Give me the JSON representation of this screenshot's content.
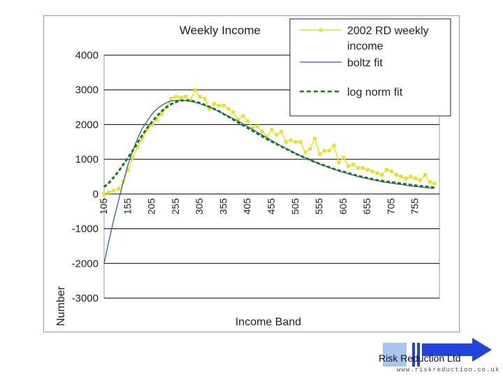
{
  "chart_data": {
    "type": "line",
    "title": "Weekly Income",
    "xlabel": "Income Band",
    "ylabel": "Number",
    "ylim": [
      -3000,
      4000
    ],
    "yticks": [
      "4000",
      "3000",
      "2000",
      "1000",
      "0",
      "-1000",
      "-2000",
      "-3000"
    ],
    "xticks": [
      "105",
      "155",
      "205",
      "255",
      "305",
      "355",
      "405",
      "455",
      "505",
      "555",
      "605",
      "655",
      "705",
      "755"
    ],
    "grid": "horizontal",
    "legend_position": "top-right",
    "legend": [
      "2002 RD weekly income",
      "boltz fit",
      "log norm fit"
    ],
    "series": [
      {
        "name": "2002 RD weekly income",
        "style": "points",
        "color": "#e8e02a",
        "x": [
          105,
          115,
          125,
          135,
          145,
          155,
          165,
          175,
          185,
          195,
          205,
          215,
          225,
          235,
          245,
          255,
          265,
          275,
          285,
          295,
          305,
          315,
          325,
          335,
          345,
          355,
          365,
          375,
          385,
          395,
          405,
          415,
          425,
          435,
          445,
          455,
          465,
          475,
          485,
          495,
          505,
          515,
          525,
          535,
          545,
          555,
          565,
          575,
          585,
          595,
          605,
          615,
          625,
          635,
          645,
          655,
          665,
          675,
          685,
          695,
          705,
          715,
          725,
          735,
          745,
          755,
          765,
          775,
          785,
          795
        ],
        "y": [
          0,
          50,
          100,
          150,
          350,
          700,
          1050,
          1350,
          1600,
          1850,
          2000,
          2150,
          2300,
          2500,
          2750,
          2800,
          2780,
          2800,
          2700,
          3000,
          2800,
          2750,
          2450,
          2600,
          2550,
          2550,
          2450,
          2350,
          2150,
          2250,
          2100,
          1900,
          1950,
          1800,
          1650,
          1850,
          1700,
          1800,
          1500,
          1550,
          1500,
          1500,
          1200,
          1300,
          1600,
          1150,
          1250,
          1250,
          1400,
          900,
          1050,
          800,
          850,
          750,
          750,
          700,
          650,
          600,
          550,
          700,
          650,
          550,
          500,
          450,
          500,
          450,
          400,
          550,
          350,
          300
        ]
      },
      {
        "name": "boltz fit",
        "style": "line",
        "color": "#2b5fb5",
        "x": [
          105,
          115,
          125,
          135,
          145,
          155,
          165,
          175,
          185,
          195,
          205,
          215,
          225,
          235,
          245,
          255,
          265,
          275,
          285,
          295,
          305,
          315,
          325,
          335,
          345,
          355,
          365,
          375,
          385,
          395,
          405,
          415,
          425,
          435,
          445,
          455,
          465,
          475,
          485,
          495,
          505,
          515,
          525,
          535,
          545,
          555,
          565,
          575,
          585,
          595,
          605,
          615,
          625,
          635,
          645,
          655,
          665,
          675,
          685,
          695,
          705,
          715,
          725,
          735,
          745,
          755,
          765,
          775,
          785,
          795
        ],
        "y": [
          -2000,
          -1350,
          -750,
          -200,
          350,
          850,
          1250,
          1600,
          1900,
          2100,
          2300,
          2450,
          2550,
          2630,
          2680,
          2700,
          2700,
          2690,
          2670,
          2640,
          2600,
          2550,
          2500,
          2440,
          2380,
          2310,
          2240,
          2170,
          2100,
          2020,
          1940,
          1860,
          1780,
          1700,
          1620,
          1540,
          1460,
          1380,
          1310,
          1240,
          1170,
          1100,
          1040,
          980,
          920,
          860,
          810,
          760,
          710,
          660,
          620,
          580,
          540,
          500,
          470,
          440,
          410,
          380,
          350,
          330,
          310,
          290,
          270,
          250,
          230,
          215,
          200,
          185,
          170,
          160
        ]
      },
      {
        "name": "log norm fit",
        "style": "dashed",
        "color": "#1a7a1a",
        "x": [
          105,
          115,
          125,
          135,
          145,
          155,
          165,
          175,
          185,
          195,
          205,
          215,
          225,
          235,
          245,
          255,
          265,
          275,
          285,
          295,
          305,
          315,
          325,
          335,
          345,
          355,
          365,
          375,
          385,
          395,
          405,
          415,
          425,
          435,
          445,
          455,
          465,
          475,
          485,
          495,
          505,
          515,
          525,
          535,
          545,
          555,
          565,
          575,
          585,
          595,
          605,
          615,
          625,
          635,
          645,
          655,
          665,
          675,
          685,
          695,
          705,
          715,
          725,
          735,
          745,
          755,
          765,
          775,
          785,
          795
        ],
        "y": [
          200,
          320,
          480,
          650,
          850,
          1050,
          1250,
          1480,
          1700,
          1900,
          2080,
          2240,
          2380,
          2500,
          2590,
          2650,
          2690,
          2700,
          2690,
          2660,
          2620,
          2570,
          2510,
          2450,
          2380,
          2300,
          2220,
          2140,
          2060,
          1980,
          1900,
          1820,
          1740,
          1660,
          1580,
          1510,
          1440,
          1370,
          1300,
          1230,
          1160,
          1100,
          1040,
          980,
          920,
          870,
          820,
          770,
          720,
          680,
          640,
          600,
          560,
          520,
          490,
          460,
          430,
          400,
          380,
          360,
          340,
          320,
          300,
          280,
          260,
          245,
          230,
          215,
          200,
          185
        ]
      }
    ]
  },
  "logo": {
    "company": "Risk Reduction Ltd",
    "url": "www.riskreduction.co.uk"
  }
}
